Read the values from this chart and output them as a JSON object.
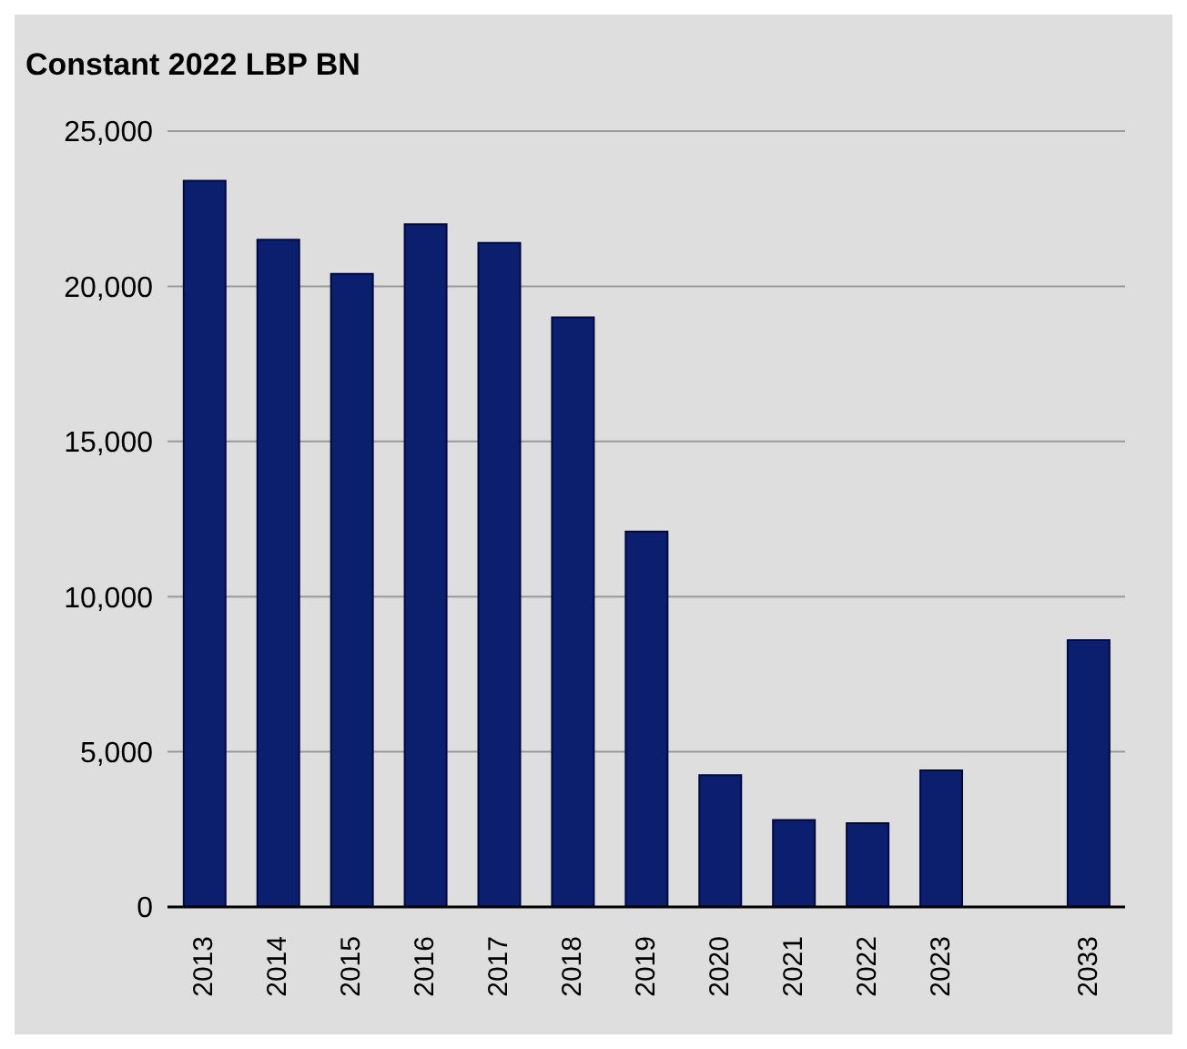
{
  "chart_data": {
    "type": "bar",
    "title": "Constant 2022 LBP BN",
    "categories": [
      "2013",
      "2014",
      "2015",
      "2016",
      "2017",
      "2018",
      "2019",
      "2020",
      "2021",
      "2022",
      "2023",
      null,
      "2033"
    ],
    "values": [
      23400,
      21500,
      20400,
      22000,
      21400,
      19000,
      12100,
      4250,
      2800,
      2700,
      4400,
      null,
      8600
    ],
    "color": "#0c1f6f",
    "ylim": [
      0,
      25000
    ],
    "yticks": [
      {
        "value": 0,
        "label": "0"
      },
      {
        "value": 5000,
        "label": "5,000"
      },
      {
        "value": 10000,
        "label": "10,000"
      },
      {
        "value": 15000,
        "label": "15,000"
      },
      {
        "value": 20000,
        "label": "20,000"
      },
      {
        "value": 25000,
        "label": "25,000"
      }
    ],
    "grid": "y",
    "legend": false
  }
}
